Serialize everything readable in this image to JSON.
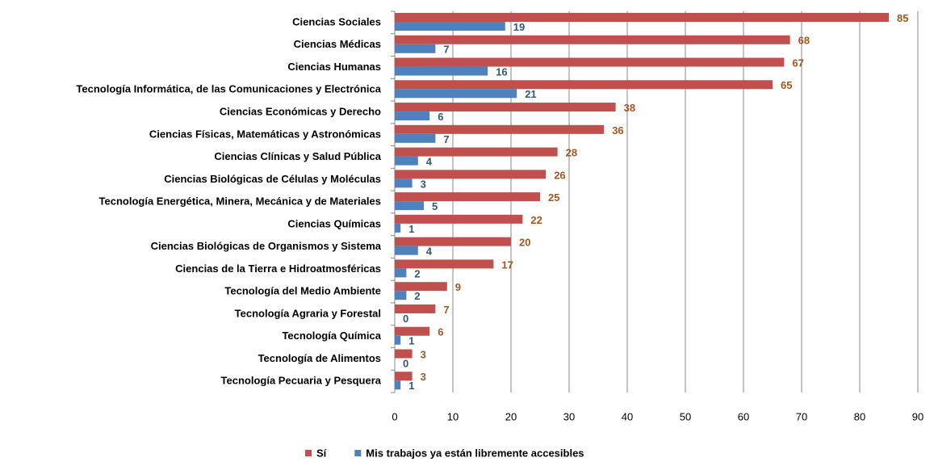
{
  "chart_data": {
    "type": "bar",
    "orientation": "horizontal",
    "categories": [
      "Ciencias Sociales",
      "Ciencias Médicas",
      "Ciencias Humanas",
      "Tecnología Informática, de las Comunicaciones y Electrónica",
      "Ciencias Económicas y Derecho",
      "Ciencias Físicas, Matemáticas y Astronómicas",
      "Ciencias Clínicas y Salud Pública",
      "Ciencias Biológicas de Células y Moléculas",
      "Tecnología Energética, Minera, Mecánica y de Materiales",
      "Ciencias Químicas",
      "Ciencias Biológicas de Organismos y Sistema",
      "Ciencias de la Tierra e Hidroatmosféricas",
      "Tecnología del Medio Ambiente",
      "Tecnología Agraria y Forestal",
      "Tecnología Química",
      "Tecnología de Alimentos",
      "Tecnología Pecuaria y Pesquera"
    ],
    "series": [
      {
        "name": "Sí",
        "color": "#c0504d",
        "label_color": "#a5561e",
        "values": [
          85,
          68,
          67,
          65,
          38,
          36,
          28,
          26,
          25,
          22,
          20,
          17,
          9,
          7,
          6,
          3,
          3
        ]
      },
      {
        "name": "Mis trabajos ya están libremente accesibles",
        "color": "#4f81bd",
        "label_color": "#2e5b72",
        "values": [
          19,
          7,
          16,
          21,
          6,
          7,
          4,
          3,
          5,
          1,
          4,
          2,
          2,
          0,
          1,
          0,
          1
        ]
      }
    ],
    "xlim": [
      0,
      90
    ],
    "xticks": [
      0,
      10,
      20,
      30,
      40,
      50,
      60,
      70,
      80,
      90
    ],
    "grid": true,
    "legend": "bottom"
  }
}
